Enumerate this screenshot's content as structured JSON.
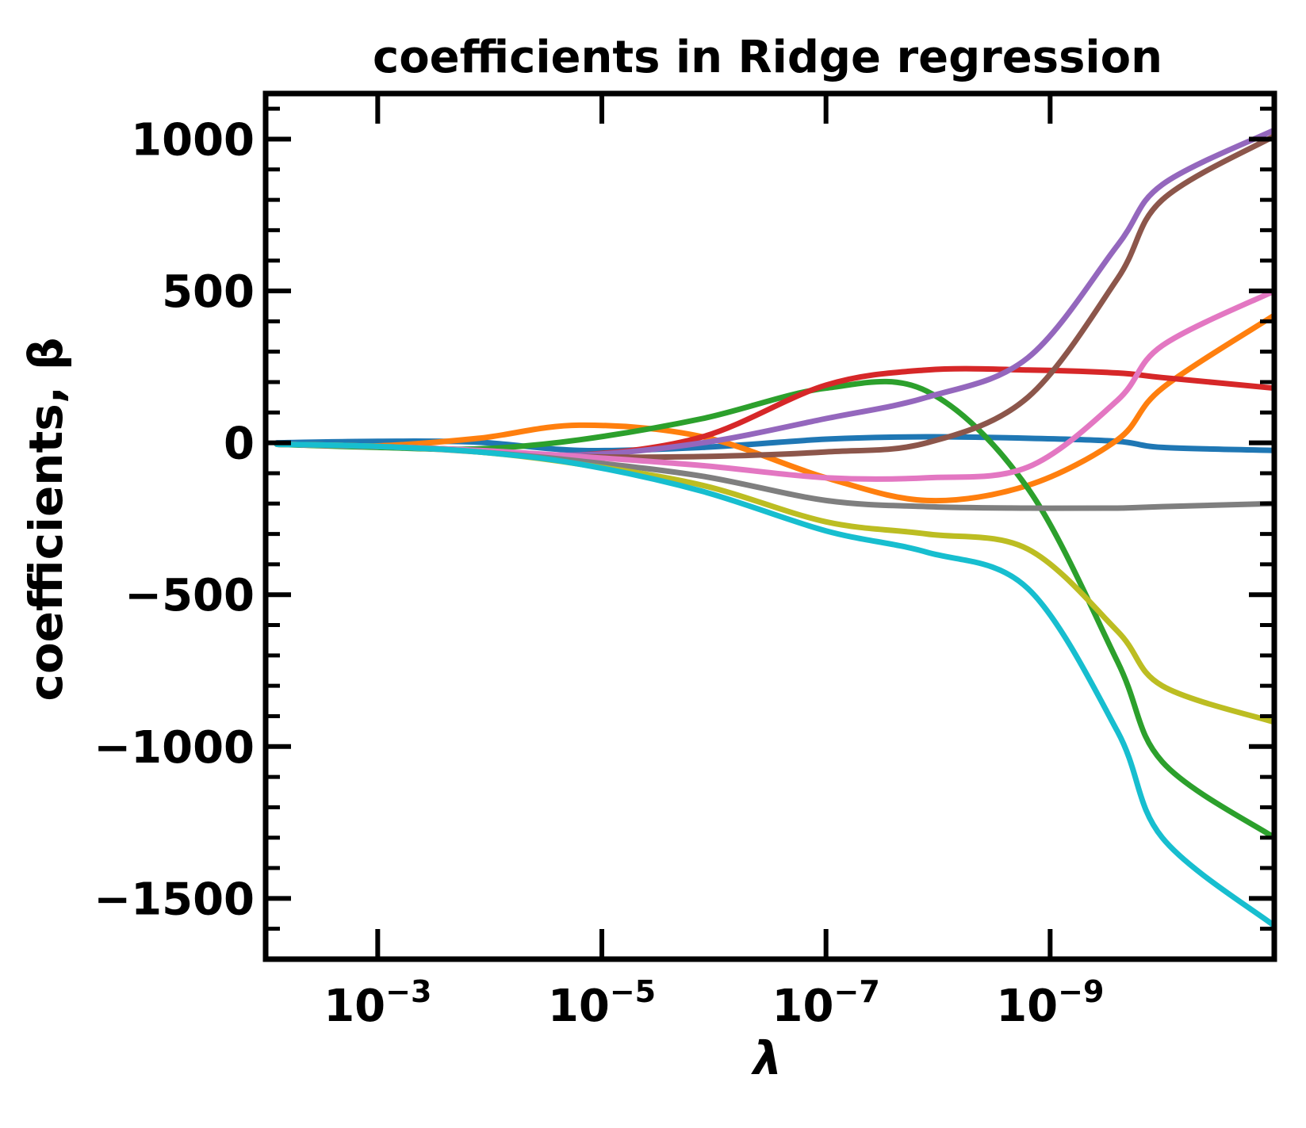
{
  "chart_data": {
    "type": "line",
    "title": "coefficients in Ridge regression",
    "xlabel": "λ",
    "ylabel": "coefficients, β",
    "x_scale": "log",
    "x_inverted": true,
    "xlim": [
      0.01,
      1e-11
    ],
    "ylim": [
      -1700,
      1150
    ],
    "x_ticks": [
      {
        "value": 0.001,
        "base": "10",
        "exponent": "−3"
      },
      {
        "value": 1e-05,
        "base": "10",
        "exponent": "−5"
      },
      {
        "value": 1e-07,
        "base": "10",
        "exponent": "−7"
      },
      {
        "value": 1e-09,
        "base": "10",
        "exponent": "−9"
      }
    ],
    "y_ticks": [
      {
        "value": 1000,
        "label": "1000"
      },
      {
        "value": 500,
        "label": "500"
      },
      {
        "value": 0,
        "label": "0"
      },
      {
        "value": -500,
        "label": "−500"
      },
      {
        "value": -1000,
        "label": "−1000"
      },
      {
        "value": -1500,
        "label": "−1500"
      }
    ],
    "y_minor_step": 100,
    "grid": false,
    "legend": false,
    "x": [
      0.00794,
      0.001,
      0.000126,
      1.58e-05,
      1.26e-06,
      1e-07,
      1.26e-08,
      1.58e-09,
      2.51e-10,
      1e-10,
      1e-11
    ],
    "series": [
      {
        "color": "#1f77b4",
        "values": [
          0,
          5,
          2,
          -25,
          -15,
          12,
          20,
          15,
          5,
          -15,
          -25
        ]
      },
      {
        "color": "#ff7f0e",
        "values": [
          -5,
          -10,
          15,
          58,
          20,
          -115,
          -190,
          -140,
          10,
          180,
          420
        ]
      },
      {
        "color": "#2ca02c",
        "values": [
          -5,
          -15,
          -20,
          10,
          80,
          180,
          170,
          -150,
          -720,
          -1050,
          -1300
        ]
      },
      {
        "color": "#d62728",
        "values": [
          -5,
          -12,
          -25,
          -40,
          20,
          190,
          240,
          240,
          230,
          215,
          180
        ]
      },
      {
        "color": "#9467bd",
        "values": [
          -5,
          -12,
          -25,
          -40,
          0,
          80,
          150,
          280,
          650,
          850,
          1030
        ]
      },
      {
        "color": "#8c564b",
        "values": [
          -5,
          -12,
          -25,
          -45,
          -45,
          -30,
          0,
          150,
          540,
          800,
          1010
        ]
      },
      {
        "color": "#e377c2",
        "values": [
          -5,
          -12,
          -25,
          -45,
          -75,
          -115,
          -115,
          -80,
          140,
          320,
          500
        ]
      },
      {
        "color": "#7f7f7f",
        "values": [
          -5,
          -12,
          -30,
          -60,
          -110,
          -190,
          -210,
          -215,
          -215,
          -210,
          -200
        ]
      },
      {
        "color": "#bcbd22",
        "values": [
          -5,
          -12,
          -30,
          -70,
          -140,
          -260,
          -300,
          -350,
          -620,
          -800,
          -920
        ]
      },
      {
        "color": "#17becf",
        "values": [
          -5,
          -12,
          -30,
          -70,
          -160,
          -290,
          -360,
          -480,
          -950,
          -1300,
          -1590
        ]
      }
    ]
  }
}
